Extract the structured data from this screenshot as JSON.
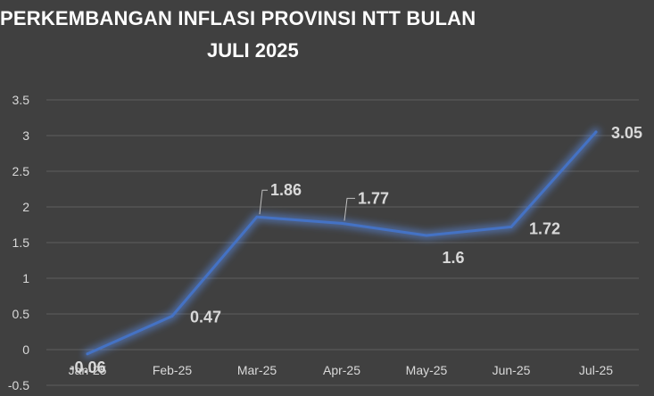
{
  "chart_data": {
    "type": "line",
    "title_line1": "PERKEMBANGAN INFLASI PROVINSI NTT BULAN",
    "title_line2": "JULI 2025",
    "categories": [
      "Jan-25",
      "Feb-25",
      "Mar-25",
      "Apr-25",
      "May-25",
      "Jun-25",
      "Jul-25"
    ],
    "values": [
      -0.06,
      0.47,
      1.86,
      1.77,
      1.6,
      1.72,
      3.05
    ],
    "value_labels": [
      "-0.06",
      "0.47",
      "1.86",
      "1.77",
      "1.6",
      "1.72",
      "3.05"
    ],
    "y_ticks": [
      "3.5",
      "3",
      "2.5",
      "2",
      "1.5",
      "1",
      "0.5",
      "0",
      "-0.5"
    ],
    "ylim": [
      -0.5,
      3.5
    ],
    "grid": true,
    "legend": "none",
    "colors": {
      "background": "#404040",
      "line": "#4472c4",
      "glow": "#5b8ff0",
      "grid": "#5e5e5e",
      "text": "#d9d9d9",
      "title": "#ffffff"
    }
  }
}
